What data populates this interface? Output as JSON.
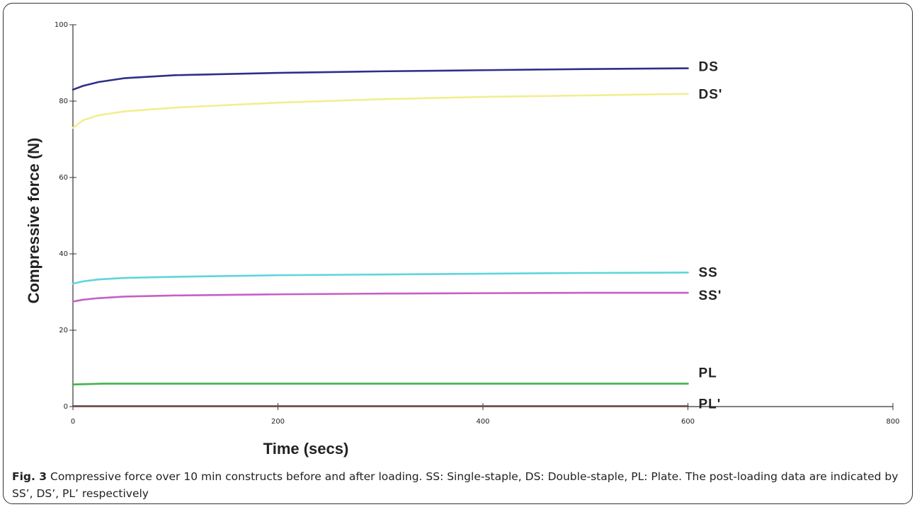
{
  "chart_data": {
    "type": "line",
    "xlabel": "Time (secs)",
    "ylabel": "Compressive force (N)",
    "xlim": [
      0,
      800
    ],
    "ylim": [
      0,
      100
    ],
    "x_ticks": [
      "0",
      "200",
      "400",
      "600",
      "800"
    ],
    "y_ticks": [
      "0",
      "20",
      "40",
      "60",
      "80",
      "100"
    ],
    "grid": false,
    "series": [
      {
        "name": "DS",
        "color": "#2e2f8a",
        "x": [
          0,
          10,
          25,
          50,
          100,
          200,
          300,
          400,
          500,
          600
        ],
        "y": [
          83,
          84,
          85,
          86,
          86.8,
          87.4,
          87.8,
          88.1,
          88.4,
          88.6
        ]
      },
      {
        "name": "DS'",
        "color": "#f2ee8e",
        "x": [
          0,
          10,
          25,
          50,
          100,
          200,
          300,
          400,
          500,
          600
        ],
        "y": [
          73,
          75,
          76.3,
          77.3,
          78.3,
          79.6,
          80.5,
          81.1,
          81.5,
          81.9
        ]
      },
      {
        "name": "SS",
        "color": "#5cd6dc",
        "x": [
          0,
          10,
          25,
          50,
          100,
          200,
          300,
          400,
          500,
          600
        ],
        "y": [
          32.2,
          32.8,
          33.3,
          33.7,
          34,
          34.4,
          34.6,
          34.8,
          35,
          35.1
        ]
      },
      {
        "name": "SS'",
        "color": "#c65fc6",
        "x": [
          0,
          10,
          25,
          50,
          100,
          200,
          300,
          400,
          500,
          600
        ],
        "y": [
          27.5,
          28,
          28.4,
          28.8,
          29.1,
          29.4,
          29.6,
          29.7,
          29.8,
          29.8
        ]
      },
      {
        "name": "PL",
        "color": "#3fb34a",
        "x": [
          0,
          30,
          600
        ],
        "y": [
          5.8,
          6,
          6
        ]
      },
      {
        "name": "PL'",
        "color": "#6b4a4a",
        "x": [
          0,
          600
        ],
        "y": [
          0.1,
          0.1
        ]
      }
    ]
  },
  "caption": {
    "prefix": "Fig. 3",
    "text": " Compressive force over 10 min constructs before and after loading. SS: Single-staple, DS: Double-staple, PL: Plate. The post-loading data are indicated by SS’, DS’, PL’ respectively"
  }
}
